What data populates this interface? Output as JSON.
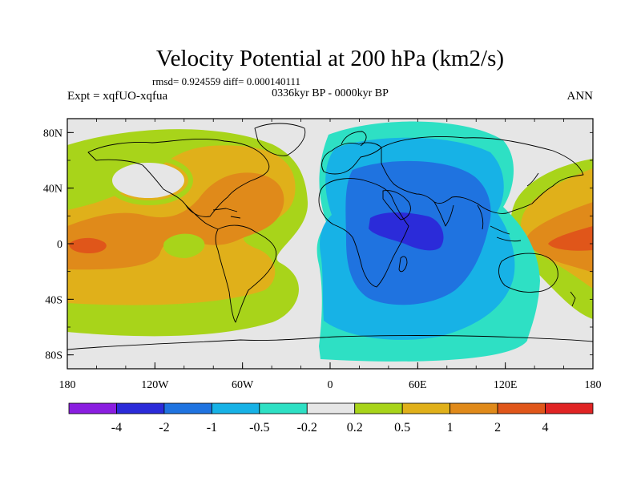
{
  "chart_data": {
    "type": "heatmap",
    "projection": "cylindrical-equidistant",
    "title": "Velocity Potential at 200 hPa (km2/s)",
    "stats_text": "rmsd= 0.924559 diff= 0.000140111",
    "subtitle": "0336kyr BP - 0000kyr BP",
    "left_label": "Expt = xqfUO-xqfua",
    "right_label": "ANN",
    "lon_range": [
      -180,
      180
    ],
    "lat_range": [
      -90,
      90
    ],
    "x_ticks": [
      {
        "lon": -180,
        "label": "180"
      },
      {
        "lon": -120,
        "label": "120W"
      },
      {
        "lon": -60,
        "label": "60W"
      },
      {
        "lon": 0,
        "label": "0"
      },
      {
        "lon": 60,
        "label": "60E"
      },
      {
        "lon": 120,
        "label": "120E"
      },
      {
        "lon": 180,
        "label": "180"
      }
    ],
    "y_ticks": [
      {
        "lat": 80,
        "label": "80N"
      },
      {
        "lat": 40,
        "label": "40N"
      },
      {
        "lat": 0,
        "label": "0"
      },
      {
        "lat": -40,
        "label": "40S"
      },
      {
        "lat": -80,
        "label": "80S"
      }
    ],
    "levels": [
      -4,
      -2,
      -1,
      -0.5,
      -0.2,
      0.2,
      0.5,
      1,
      2,
      4
    ],
    "colorbar_labels": [
      "-4",
      "-2",
      "-1",
      "-0.5",
      "-0.2",
      "0.2",
      "0.5",
      "1",
      "2",
      "4"
    ],
    "colorbar_colors": [
      "#8a1ee0",
      "#2b2bd9",
      "#1f73e0",
      "#17b2e6",
      "#2ee0c4",
      "#e6e6e6",
      "#a8d41a",
      "#e0b01a",
      "#e08a1a",
      "#e0561a",
      "#e02424"
    ],
    "contour_regions": [
      {
        "bin": "0.2 to 0.5",
        "color": "#a8d41a",
        "lon": [
          -180,
          152,
          180
        ],
        "lat": [
          -70,
          80
        ],
        "note": "outer positive band over Pacific-Atlantic"
      },
      {
        "bin": "0.5 to 1",
        "color": "#e0b01a",
        "lat_span": "approx 70S-60N"
      },
      {
        "bin": "1 to 2",
        "color": "#e08a1a",
        "centers": [
          {
            "lon": -90,
            "lat": 20
          },
          {
            "lon": -165,
            "lat": 0
          },
          {
            "lon": 165,
            "lat": 0
          }
        ]
      },
      {
        "bin": "2 to 4",
        "color": "#e0561a",
        "centers": [
          {
            "lon": -165,
            "lat": 0
          },
          {
            "lon": 165,
            "lat": -2
          }
        ]
      },
      {
        "bin": "-0.5 to -0.2",
        "color": "#2ee0c4",
        "lon": [
          -5,
          140
        ],
        "lat": [
          -85,
          80
        ],
        "note": "outer negative band"
      },
      {
        "bin": "-1 to -0.5",
        "color": "#17b2e6"
      },
      {
        "bin": "-2 to -1",
        "color": "#1f73e0",
        "center": {
          "lon": 45,
          "lat": 10
        }
      },
      {
        "bin": "-4 to -2",
        "color": "#2b2bd9",
        "center": {
          "lon": 45,
          "lat": 5
        }
      }
    ]
  }
}
